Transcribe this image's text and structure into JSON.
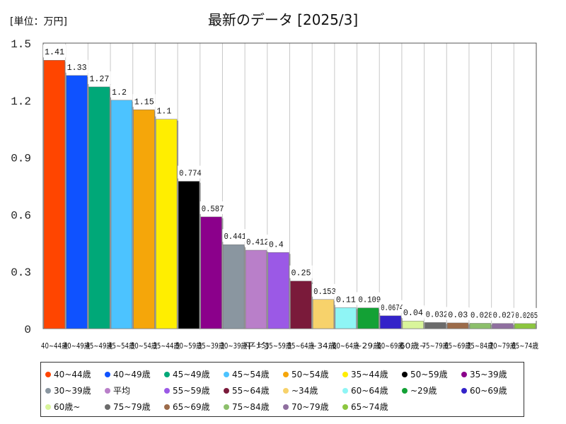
{
  "chart_data": {
    "type": "bar",
    "title": "最新のデータ [2025/3]",
    "unit_label": "[単位：万円]",
    "ylim": [
      0,
      1.5
    ],
    "yticks": [
      "0",
      "0.3",
      "0.6",
      "0.9",
      "1.2",
      "1.5"
    ],
    "grid": "vertical-lines",
    "legend_position": "bottom",
    "categories": [
      "40~44歳",
      "40~49歳",
      "45~49歳",
      "45~54歳",
      "50~54歳",
      "35~44歳",
      "50~59歳",
      "35~39歳",
      "30~39歳",
      "平均",
      "55~59歳",
      "55~64歳",
      "~34歳",
      "60~64歳",
      "~29歳",
      "60~69歳",
      "60歳~",
      "75~79歳",
      "65~69歳",
      "75~84歳",
      "70~79歳",
      "65~74歳"
    ],
    "values": [
      1.41,
      1.33,
      1.27,
      1.2,
      1.15,
      1.1,
      0.774,
      0.587,
      0.441,
      0.412,
      0.4,
      0.25,
      0.153,
      0.11,
      0.109,
      0.0674,
      0.04,
      0.032,
      0.03,
      0.028,
      0.027,
      0.0265
    ],
    "value_labels": [
      "1.41",
      "1.33",
      "1.27",
      "1.2",
      "1.15",
      "1.1",
      "0.774",
      "0.587",
      "0.441",
      "0.412",
      "0.4",
      "0.25",
      "0.153",
      "0.11",
      "0.109",
      "0.0674",
      "0.04",
      "0.032",
      "0.03",
      "0.028",
      "0.027",
      "0.0265"
    ],
    "colors": [
      "#ff4500",
      "#0f52ff",
      "#00a878",
      "#4cc3ff",
      "#f5a60a",
      "#ffee00",
      "#000000",
      "#8b008b",
      "#8a96a0",
      "#b97fc9",
      "#9b59e6",
      "#7a1a3a",
      "#f7d26b",
      "#8ff5f5",
      "#13a135",
      "#3323c9",
      "#d9f59a",
      "#6b6b6b",
      "#9c6b4a",
      "#8cbf6b",
      "#8f6f9f",
      "#8cc63f"
    ]
  }
}
